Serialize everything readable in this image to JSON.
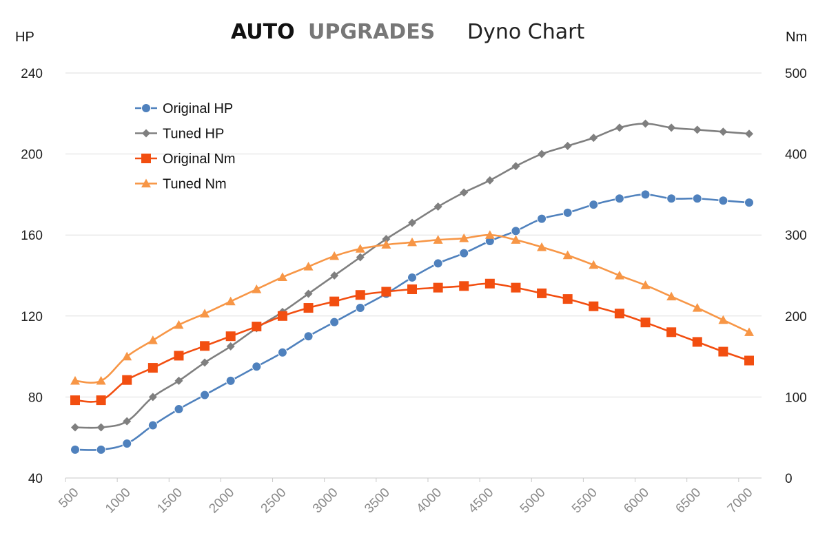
{
  "chart_data": {
    "type": "line",
    "title": {
      "brand_part1": "AUTO",
      "brand_part2": "UPGRADES",
      "text": "Dyno Chart",
      "brand_colors": [
        "#111111",
        "#777777"
      ]
    },
    "left_axis": {
      "label": "HP",
      "range": [
        40,
        240
      ],
      "ticks": [
        "240",
        "200",
        "160",
        "120",
        "80",
        "40"
      ]
    },
    "right_axis": {
      "label": "Nm",
      "range": [
        0,
        500
      ],
      "ticks": [
        "500",
        "400",
        "300",
        "200",
        "100",
        "0"
      ]
    },
    "x_ticks": [
      "500",
      "1000",
      "1500",
      "2000",
      "2500",
      "3000",
      "3500",
      "4000",
      "4500",
      "5000",
      "5500",
      "6000",
      "6500",
      "7000"
    ],
    "x": [
      500,
      750,
      1000,
      1250,
      1500,
      1750,
      2000,
      2250,
      2500,
      2750,
      3000,
      3250,
      3500,
      3750,
      4000,
      4250,
      4500,
      4750,
      5000,
      5250,
      5500,
      5750,
      6000,
      6250,
      6500,
      6750,
      7000
    ],
    "grid": true,
    "legend_position": "top-left",
    "series": [
      {
        "name": "Original HP",
        "axis": "left",
        "color": "#4f81bd",
        "marker": "circle",
        "values": [
          54,
          54,
          57,
          66,
          74,
          81,
          88,
          95,
          102,
          110,
          117,
          124,
          131,
          139,
          146,
          151,
          157,
          162,
          168,
          171,
          175,
          178,
          180,
          178,
          178,
          177,
          176
        ]
      },
      {
        "name": "Tuned HP",
        "axis": "left",
        "color": "#7f7f7f",
        "marker": "diamond",
        "values": [
          65,
          65,
          68,
          80,
          88,
          97,
          105,
          114,
          122,
          131,
          140,
          149,
          158,
          166,
          174,
          181,
          187,
          194,
          200,
          204,
          208,
          213,
          215,
          213,
          212,
          211,
          210
        ]
      },
      {
        "name": "Original Nm",
        "axis": "right",
        "color": "#f24e10",
        "marker": "square",
        "values": [
          96,
          96,
          121,
          136,
          151,
          163,
          175,
          187,
          200,
          210,
          218,
          226,
          230,
          233,
          235,
          237,
          240,
          235,
          228,
          221,
          212,
          203,
          192,
          180,
          168,
          156,
          145
        ]
      },
      {
        "name": "Tuned Nm",
        "axis": "right",
        "color": "#f79646",
        "marker": "triangle",
        "values": [
          120,
          120,
          150,
          170,
          189,
          203,
          218,
          233,
          248,
          261,
          274,
          283,
          288,
          291,
          294,
          296,
          300,
          294,
          285,
          275,
          263,
          250,
          238,
          224,
          210,
          195,
          180
        ]
      }
    ]
  }
}
